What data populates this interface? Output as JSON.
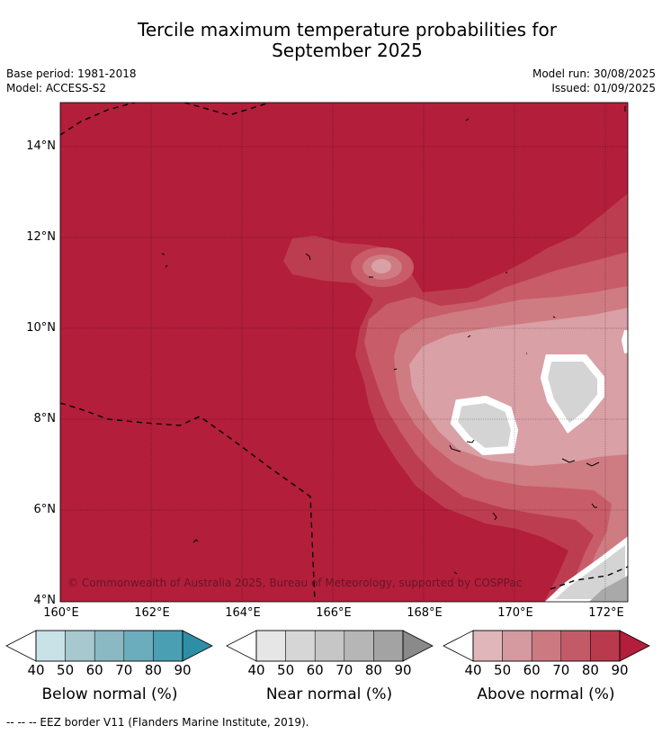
{
  "title_line1": "Tercile maximum temperature probabilities for",
  "title_line2": "September 2025",
  "meta": {
    "base_period": "Base period: 1981-2018",
    "model": "Model: ACCESS-S2",
    "model_run": "Model run: 30/08/2025",
    "issued": "Issued: 01/09/2025"
  },
  "map": {
    "lat_labels": [
      "14°N",
      "12°N",
      "10°N",
      "8°N",
      "6°N",
      "4°N"
    ],
    "lon_labels": [
      "160°E",
      "162°E",
      "164°E",
      "166°E",
      "168°E",
      "170°E",
      "172°E"
    ],
    "copyright": "© Commonwealth of Australia 2025, Bureau of Meteorology, supported by COSPPac",
    "colors": {
      "above_90": "#b31e3b",
      "above_80": "#bd3d50",
      "above_70": "#c85c68",
      "above_60": "#cf7b82",
      "above_50": "#d9a0a6",
      "near_50": "#d4d4d4",
      "near_80": "#a9a9a9"
    }
  },
  "colorbars": [
    {
      "label": "Below normal (%)",
      "ticks": [
        "40",
        "50",
        "60",
        "70",
        "80",
        "90"
      ],
      "colors": [
        "#c9e2e8",
        "#a6c8ce",
        "#8ab8c3",
        "#6cadbd",
        "#4a9fb3",
        "#2d8fa6"
      ]
    },
    {
      "label": "Near normal (%)",
      "ticks": [
        "40",
        "50",
        "60",
        "70",
        "80",
        "90"
      ],
      "colors": [
        "#e6e6e6",
        "#d6d6d6",
        "#c6c6c6",
        "#b6b6b6",
        "#a3a3a3",
        "#8a8a8a"
      ]
    },
    {
      "label": "Above normal (%)",
      "ticks": [
        "40",
        "50",
        "60",
        "70",
        "80",
        "90"
      ],
      "colors": [
        "#e0b6bb",
        "#d49aa0",
        "#cc7a82",
        "#c25a67",
        "#b93a4d",
        "#b31e3b"
      ]
    }
  ],
  "footer": "--  --  -- EEZ border V11 (Flanders Marine Institute, 2019)."
}
